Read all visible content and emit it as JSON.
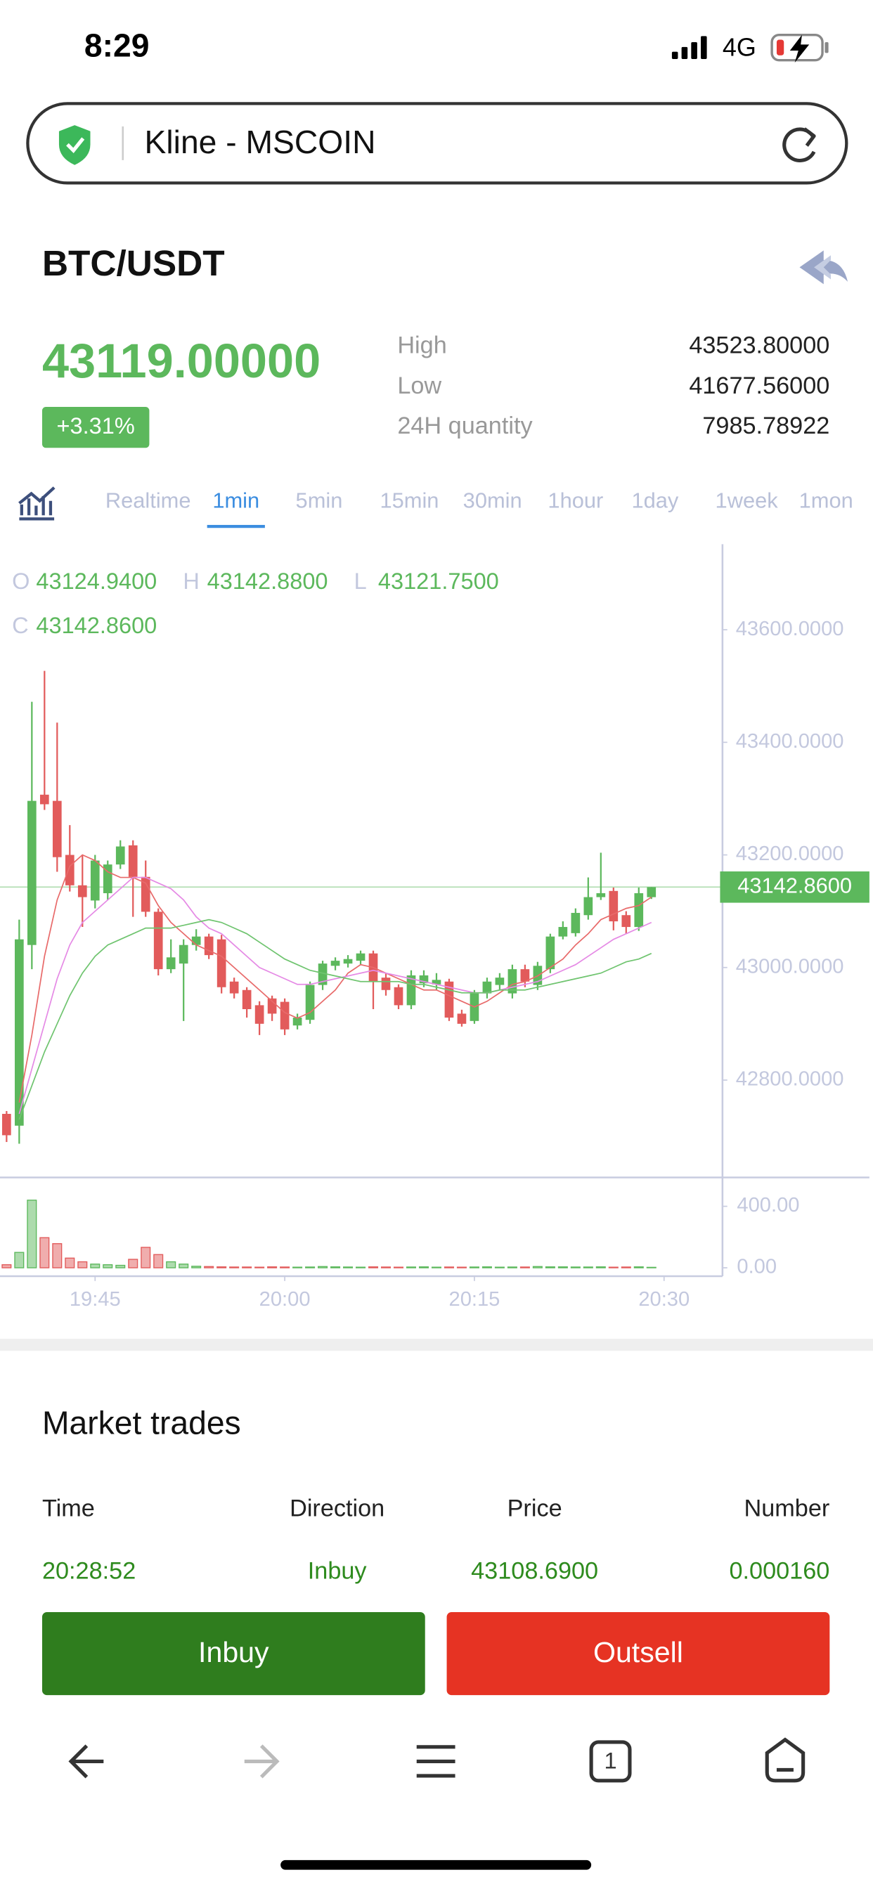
{
  "status_bar": {
    "time": "8:29",
    "network": "4G"
  },
  "address_bar": {
    "title": "Kline - MSCOIN"
  },
  "header": {
    "pair": "BTC/USDT"
  },
  "ticker": {
    "price": "43119.00000",
    "change": "+3.31%",
    "stats": [
      {
        "label": "High",
        "value": "43523.80000"
      },
      {
        "label": "Low",
        "value": "41677.56000"
      },
      {
        "label": "24H quantity",
        "value": "7985.78922"
      }
    ]
  },
  "tabs": {
    "items": [
      "Realtime",
      "1min",
      "5min",
      "15min",
      "30min",
      "1hour",
      "1day",
      "1week",
      "1mon"
    ],
    "active": 1
  },
  "chart_data": {
    "type": "candlestick",
    "ohlc_legend": [
      {
        "label": "O",
        "value": "43124.9400"
      },
      {
        "label": "H",
        "value": "43142.8800"
      },
      {
        "label": "L",
        "value": "43121.7500"
      },
      {
        "label": "C",
        "value": "43142.8600"
      }
    ],
    "up_color": "#5cb85c",
    "down_color": "#e25b5b",
    "xlim": [
      -0.52,
      56.62
    ],
    "xticks": [
      {
        "value": 7,
        "label": "19:45"
      },
      {
        "value": 22,
        "label": "20:00"
      },
      {
        "value": 37,
        "label": "20:15"
      },
      {
        "value": 52,
        "label": "20:30"
      }
    ],
    "ylim": [
      42627,
      43752
    ],
    "yticks": [
      {
        "value": 43600,
        "label": "43600.0000"
      },
      {
        "value": 43400,
        "label": "43400.0000"
      },
      {
        "value": 43200,
        "label": "43200.0000"
      },
      {
        "value": 43000,
        "label": "43000.0000"
      },
      {
        "value": 42800,
        "label": "42800.0000"
      }
    ],
    "last_price": {
      "value": 43142.86,
      "label": "43142.8600"
    },
    "open": [
      42740,
      42719,
      43040,
      43307,
      43296,
      43200,
      43146,
      43119,
      43132,
      43183,
      43217,
      43161,
      43099,
      42997,
      43007,
      43040,
      43055,
      43050,
      42975,
      42960,
      42933,
      42945,
      42939,
      42897,
      42907,
      42969,
      43003,
      43007,
      43012,
      43025,
      42982,
      42965,
      42933,
      42972,
      42970,
      42975,
      42918,
      42905,
      42954,
      42969,
      42954,
      42997,
      42969,
      42997,
      43055,
      43061,
      43093,
      43125,
      43136,
      43093,
      43072,
      43124.94
    ],
    "high": [
      42745,
      43085,
      43472,
      43527,
      43435,
      43253,
      43200,
      43200,
      43190,
      43226,
      43226,
      43190,
      43105,
      43050,
      43050,
      43068,
      43060,
      43058,
      42982,
      42965,
      42940,
      42950,
      42945,
      42918,
      42975,
      43012,
      43018,
      43022,
      43030,
      43030,
      42990,
      42970,
      42995,
      42995,
      42990,
      42980,
      42925,
      42960,
      42982,
      42990,
      43005,
      43005,
      43010,
      43060,
      43082,
      43105,
      43160,
      43204,
      43142,
      43100,
      43142,
      43142.88
    ],
    "low": [
      42690,
      42687,
      42997,
      43280,
      43170,
      43135,
      43072,
      43105,
      43120,
      43175,
      43090,
      43090,
      42986,
      42990,
      42905,
      43030,
      43015,
      42954,
      42945,
      42911,
      42880,
      42905,
      42880,
      42890,
      42900,
      42960,
      42995,
      43000,
      43005,
      42926,
      42950,
      42926,
      42926,
      42965,
      42960,
      42905,
      42895,
      42900,
      42945,
      42960,
      42945,
      42965,
      42960,
      42990,
      43050,
      43055,
      43085,
      43120,
      43066,
      43060,
      43065,
      43121.75
    ],
    "close": [
      42702,
      43050,
      43296,
      43290,
      43196,
      43146,
      43125,
      43190,
      43183,
      43215,
      43161,
      43099,
      42997,
      43018,
      43040,
      43055,
      43022,
      42965,
      42954,
      42926,
      42900,
      42918,
      42890,
      42911,
      42969,
      43007,
      43012,
      43015,
      43025,
      42975,
      42960,
      42933,
      42986,
      42986,
      42978,
      42911,
      42900,
      42954,
      42975,
      42982,
      42997,
      42975,
      43003,
      43055,
      43072,
      43097,
      43125,
      43132,
      43082,
      43072,
      43132,
      43142.86
    ],
    "ma_series": [
      {
        "color": "#e86a6a",
        "values": [
          null,
          42760,
          42880,
          43020,
          43120,
          43180,
          43200,
          43190,
          43170,
          43160,
          43160,
          43150,
          43110,
          43080,
          43060,
          43040,
          43030,
          43020,
          43000,
          42980,
          42960,
          42940,
          42920,
          42910,
          42920,
          42940,
          42960,
          42990,
          43005,
          43000,
          42990,
          42980,
          42970,
          42960,
          42960,
          42950,
          42940,
          42930,
          42940,
          42955,
          42970,
          42975,
          42985,
          43000,
          43015,
          43040,
          43060,
          43085,
          43095,
          43105,
          43110,
          43125
        ]
      },
      {
        "color": "#e58ae5",
        "values": [
          null,
          42740,
          42820,
          42900,
          42980,
          43040,
          43080,
          43100,
          43120,
          43140,
          43160,
          43160,
          43150,
          43140,
          43120,
          43090,
          43070,
          43060,
          43040,
          43020,
          43000,
          42990,
          42980,
          42970,
          42970,
          42975,
          42980,
          42985,
          42990,
          42995,
          42990,
          42985,
          42980,
          42975,
          42970,
          42965,
          42960,
          42955,
          42955,
          42960,
          42965,
          42970,
          42975,
          42985,
          42995,
          43005,
          43020,
          43035,
          43050,
          43060,
          43070,
          43080
        ]
      },
      {
        "color": "#6fc46f",
        "values": [
          null,
          42730,
          42790,
          42850,
          42900,
          42950,
          42990,
          43020,
          43040,
          43050,
          43060,
          43070,
          43070,
          43070,
          43075,
          43080,
          43085,
          43080,
          43070,
          43060,
          43045,
          43030,
          43015,
          43005,
          42995,
          42990,
          42985,
          42980,
          42975,
          42975,
          42975,
          42975,
          42970,
          42970,
          42965,
          42960,
          42955,
          42955,
          42955,
          42960,
          42960,
          42960,
          42965,
          42970,
          42975,
          42980,
          42985,
          42990,
          43000,
          43010,
          43015,
          43025
        ]
      }
    ],
    "volume": {
      "ylim": [
        -39,
        572
      ],
      "yticks": [
        {
          "value": 400,
          "label": "400.00"
        },
        {
          "value": 0,
          "label": "0.00"
        }
      ],
      "values": [
        20,
        100,
        440,
        196,
        157,
        63,
        39,
        24,
        20,
        16,
        55,
        133,
        86,
        39,
        24,
        10,
        8,
        6,
        5,
        5,
        4,
        6,
        5,
        4,
        5,
        8,
        6,
        5,
        4,
        6,
        5,
        4,
        5,
        6,
        4,
        5,
        4,
        5,
        6,
        4,
        5,
        5,
        8,
        6,
        6,
        5,
        5,
        6,
        4,
        5,
        6,
        3
      ]
    }
  },
  "market_trades": {
    "title": "Market trades",
    "columns": [
      "Time",
      "Direction",
      "Price",
      "Number"
    ],
    "rows": [
      [
        "20:28:52",
        "Inbuy",
        "43108.6900",
        "0.000160"
      ]
    ]
  },
  "buttons": {
    "buy": "Inbuy",
    "sell": "Outsell"
  },
  "toolbar": {
    "tab_count": "1"
  }
}
